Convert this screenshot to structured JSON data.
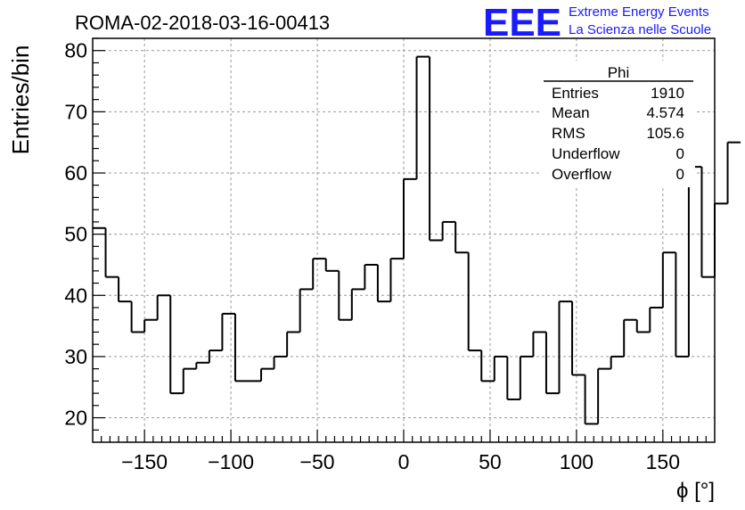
{
  "header": {
    "run_title": "ROMA-02-2018-03-16-00413",
    "logo_text": "EEE",
    "logo_line1": "Extreme Energy Events",
    "logo_line2": "La Scienza nelle Scuole",
    "logo_color": "#1a1aff"
  },
  "stats_box": {
    "title": "Phi",
    "rows": [
      {
        "label": "Entries",
        "value": "1910"
      },
      {
        "label": "Mean",
        "value": "4.574"
      },
      {
        "label": "RMS",
        "value": "105.6"
      },
      {
        "label": "Underflow",
        "value": "0"
      },
      {
        "label": "Overflow",
        "value": "0"
      }
    ]
  },
  "chart_data": {
    "type": "histogram",
    "title": "",
    "xlabel": "ϕ [°]",
    "ylabel": "Entries/bin",
    "xlim": [
      -180,
      180
    ],
    "ylim": [
      16,
      82
    ],
    "bin_edges_start": -180,
    "bin_width": 7.5,
    "values": [
      51,
      43,
      39,
      34,
      36,
      40,
      24,
      28,
      29,
      31,
      37,
      26,
      26,
      28,
      30,
      34,
      41,
      46,
      44,
      36,
      41,
      45,
      39,
      46,
      59,
      79,
      49,
      52,
      47,
      31,
      26,
      30,
      23,
      30,
      34,
      24,
      39,
      27,
      19,
      28,
      30,
      36,
      34,
      38,
      47,
      30,
      61,
      43,
      55,
      65
    ],
    "xticks": [
      -150,
      -100,
      -50,
      0,
      50,
      100,
      150
    ],
    "xtick_labels": [
      "−150",
      "−100",
      "−50",
      "0",
      "50",
      "100",
      "150"
    ],
    "yticks": [
      20,
      30,
      40,
      50,
      60,
      70,
      80
    ],
    "ytick_labels": [
      "20",
      "30",
      "40",
      "50",
      "60",
      "70",
      "80"
    ],
    "grid": true,
    "line_color": "#000000"
  }
}
